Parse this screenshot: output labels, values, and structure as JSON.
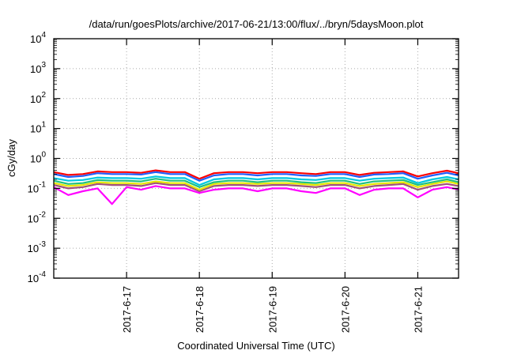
{
  "chart_data": {
    "type": "line",
    "title": "/data/run/goesPlots/archive/2017-06-21/13:00/flux/../bryn/5daysMoon.plot",
    "xlabel": "Coordinated Universal Time (UTC)",
    "ylabel": "cGy/day",
    "yscale": "log",
    "ylim_exponents": [
      -4,
      4
    ],
    "y_tick_base": "10",
    "y_tick_exponents": [
      "4",
      "3",
      "2",
      "1",
      "0",
      "-1",
      "-2",
      "-3",
      "-4"
    ],
    "x_unit": "days since 2017-6-16 00:00 UTC",
    "xlim": [
      0,
      5.56
    ],
    "x_ticks": [
      {
        "value": 1,
        "label": "2017-6-17"
      },
      {
        "value": 2,
        "label": "2017-6-18"
      },
      {
        "value": 3,
        "label": "2017-6-19"
      },
      {
        "value": 4,
        "label": "2017-6-20"
      },
      {
        "value": 5,
        "label": "2017-6-21"
      }
    ],
    "grid": true,
    "x": [
      0,
      0.2,
      0.4,
      0.6,
      0.8,
      1.0,
      1.2,
      1.4,
      1.6,
      1.8,
      2.0,
      2.2,
      2.4,
      2.6,
      2.8,
      3.0,
      3.2,
      3.4,
      3.6,
      3.8,
      4.0,
      4.2,
      4.4,
      4.6,
      4.8,
      5.0,
      5.2,
      5.4,
      5.56
    ],
    "series": [
      {
        "name": "magenta",
        "color": "#ff00ff",
        "values": [
          0.11,
          0.06,
          0.08,
          0.1,
          0.03,
          0.11,
          0.09,
          0.12,
          0.1,
          0.1,
          0.07,
          0.09,
          0.1,
          0.1,
          0.08,
          0.1,
          0.1,
          0.08,
          0.07,
          0.1,
          0.1,
          0.06,
          0.09,
          0.1,
          0.1,
          0.05,
          0.09,
          0.11,
          0.09
        ]
      },
      {
        "name": "purple",
        "color": "#a0507a",
        "values": [
          0.13,
          0.1,
          0.11,
          0.14,
          0.13,
          0.13,
          0.12,
          0.15,
          0.13,
          0.13,
          0.08,
          0.12,
          0.13,
          0.13,
          0.12,
          0.13,
          0.13,
          0.12,
          0.11,
          0.13,
          0.13,
          0.1,
          0.12,
          0.13,
          0.14,
          0.09,
          0.12,
          0.14,
          0.12
        ]
      },
      {
        "name": "yellow",
        "color": "#e6e600",
        "values": [
          0.15,
          0.12,
          0.13,
          0.16,
          0.15,
          0.15,
          0.14,
          0.17,
          0.15,
          0.15,
          0.09,
          0.14,
          0.15,
          0.15,
          0.14,
          0.15,
          0.15,
          0.14,
          0.13,
          0.15,
          0.15,
          0.12,
          0.14,
          0.15,
          0.16,
          0.11,
          0.14,
          0.17,
          0.14
        ]
      },
      {
        "name": "green",
        "color": "#20c080",
        "values": [
          0.18,
          0.14,
          0.15,
          0.19,
          0.18,
          0.18,
          0.17,
          0.21,
          0.18,
          0.18,
          0.11,
          0.16,
          0.18,
          0.18,
          0.16,
          0.18,
          0.18,
          0.16,
          0.15,
          0.18,
          0.18,
          0.14,
          0.17,
          0.18,
          0.19,
          0.13,
          0.16,
          0.2,
          0.16
        ]
      },
      {
        "name": "cyan",
        "color": "#00c8e0",
        "values": [
          0.22,
          0.18,
          0.19,
          0.23,
          0.22,
          0.22,
          0.21,
          0.25,
          0.22,
          0.22,
          0.13,
          0.2,
          0.22,
          0.22,
          0.2,
          0.22,
          0.22,
          0.2,
          0.19,
          0.22,
          0.22,
          0.18,
          0.21,
          0.22,
          0.23,
          0.15,
          0.2,
          0.24,
          0.2
        ]
      },
      {
        "name": "red",
        "color": "#ff0000",
        "values": [
          0.35,
          0.28,
          0.3,
          0.37,
          0.35,
          0.35,
          0.33,
          0.4,
          0.35,
          0.35,
          0.21,
          0.32,
          0.35,
          0.35,
          0.32,
          0.35,
          0.35,
          0.32,
          0.3,
          0.35,
          0.35,
          0.28,
          0.33,
          0.35,
          0.37,
          0.25,
          0.32,
          0.39,
          0.32
        ]
      },
      {
        "name": "blue",
        "color": "#1f5fff",
        "values": [
          0.3,
          0.24,
          0.26,
          0.32,
          0.3,
          0.3,
          0.29,
          0.35,
          0.3,
          0.3,
          0.18,
          0.27,
          0.3,
          0.3,
          0.27,
          0.3,
          0.3,
          0.27,
          0.26,
          0.3,
          0.3,
          0.24,
          0.29,
          0.3,
          0.32,
          0.21,
          0.27,
          0.33,
          0.27
        ]
      }
    ]
  }
}
